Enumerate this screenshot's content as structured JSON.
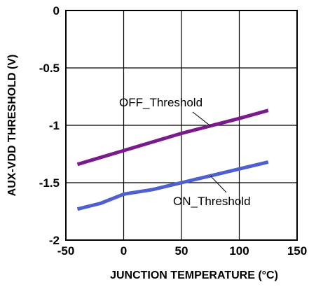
{
  "chart_data": {
    "type": "line",
    "title": "",
    "xlabel": "JUNCTION TEMPERATURE (°C)",
    "ylabel": "AUX-VDD THRESHOLD (V)",
    "xlim": [
      -50,
      150
    ],
    "ylim": [
      -2,
      0
    ],
    "xticks": [
      -50,
      0,
      50,
      100,
      150
    ],
    "xtick_labels": [
      "-50",
      "0",
      "50",
      "100",
      "150"
    ],
    "yticks": [
      0,
      -0.5,
      -1,
      -1.5,
      -2
    ],
    "ytick_labels": [
      "0",
      "-0.5",
      "-1",
      "-1.5",
      "-2"
    ],
    "grid": true,
    "series": [
      {
        "name": "OFF_Threshold",
        "color": "#7a1a8c",
        "x": [
          -40,
          0,
          50,
          100,
          125
        ],
        "y": [
          -1.34,
          -1.22,
          -1.07,
          -0.94,
          -0.87
        ]
      },
      {
        "name": "ON_Threshold",
        "color": "#4f5fd0",
        "x": [
          -40,
          -20,
          0,
          25,
          50,
          75,
          100,
          125
        ],
        "y": [
          -1.73,
          -1.68,
          -1.6,
          -1.56,
          -1.5,
          -1.44,
          -1.38,
          -1.32
        ]
      }
    ],
    "annotations": [
      {
        "text": "OFF_Threshold",
        "series": 0,
        "at_x": 75
      },
      {
        "text": "ON_Threshold",
        "series": 1,
        "at_x": 75
      }
    ]
  }
}
